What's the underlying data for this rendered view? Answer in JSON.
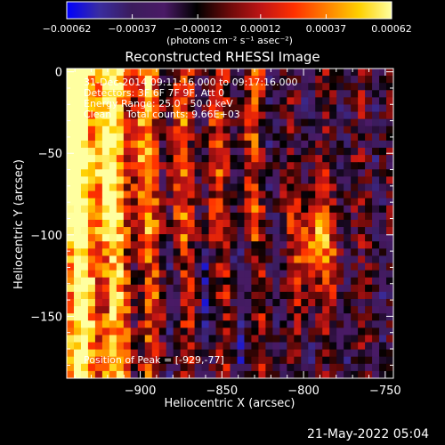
{
  "chart_data": {
    "type": "heatmap",
    "title": "Reconstructed RHESSI Image",
    "xlabel": "Heliocentric X (arcsec)",
    "ylabel": "Heliocentric Y (arcsec)",
    "xlim": [
      -945,
      -745
    ],
    "ylim": [
      -188,
      2
    ],
    "x_ticks": [
      {
        "value": -900,
        "label": "−900"
      },
      {
        "value": -850,
        "label": "−850"
      },
      {
        "value": -800,
        "label": "−800"
      },
      {
        "value": -750,
        "label": "−750"
      }
    ],
    "y_ticks": [
      {
        "value": 0,
        "label": "0"
      },
      {
        "value": -50,
        "label": "−50"
      },
      {
        "value": -100,
        "label": "−100"
      },
      {
        "value": -150,
        "label": "−150"
      }
    ],
    "colorbar": {
      "range": [
        -0.00062,
        0.00062
      ],
      "ticks": [
        {
          "value": -0.00062,
          "label": "−0.00062"
        },
        {
          "value": -0.00037,
          "label": "−0.00037"
        },
        {
          "value": -0.00012,
          "label": "−0.00012"
        },
        {
          "value": 0.00012,
          "label": "0.00012"
        },
        {
          "value": 0.00037,
          "label": "0.00037"
        },
        {
          "value": 0.00062,
          "label": "0.00062"
        }
      ],
      "units_label": "(photons cm⁻² s⁻¹ asec⁻²)",
      "colormap": [
        "#0000ff",
        "#3a2da0",
        "#3b1c5c",
        "#4a1a66",
        "#000000",
        "#6b0a0a",
        "#c01515",
        "#ff3000",
        "#ff8000",
        "#ffd000",
        "#ffffa0"
      ]
    },
    "grid": false,
    "annotations": [
      "31-Dec-2014 09:11:16.000 to 09:17:16.000",
      "Detectors: 3F 6F 7F 9F, Att 0",
      "Energy Range: 25.0 - 50.0 keV",
      "Clean",
      "Total counts: 9.66E+03"
    ],
    "peak_label": "Position of Peak = [-929,-77]",
    "peak": [
      -929,
      -77
    ]
  },
  "footer": {
    "timestamp": "21-May-2022 05:04"
  }
}
